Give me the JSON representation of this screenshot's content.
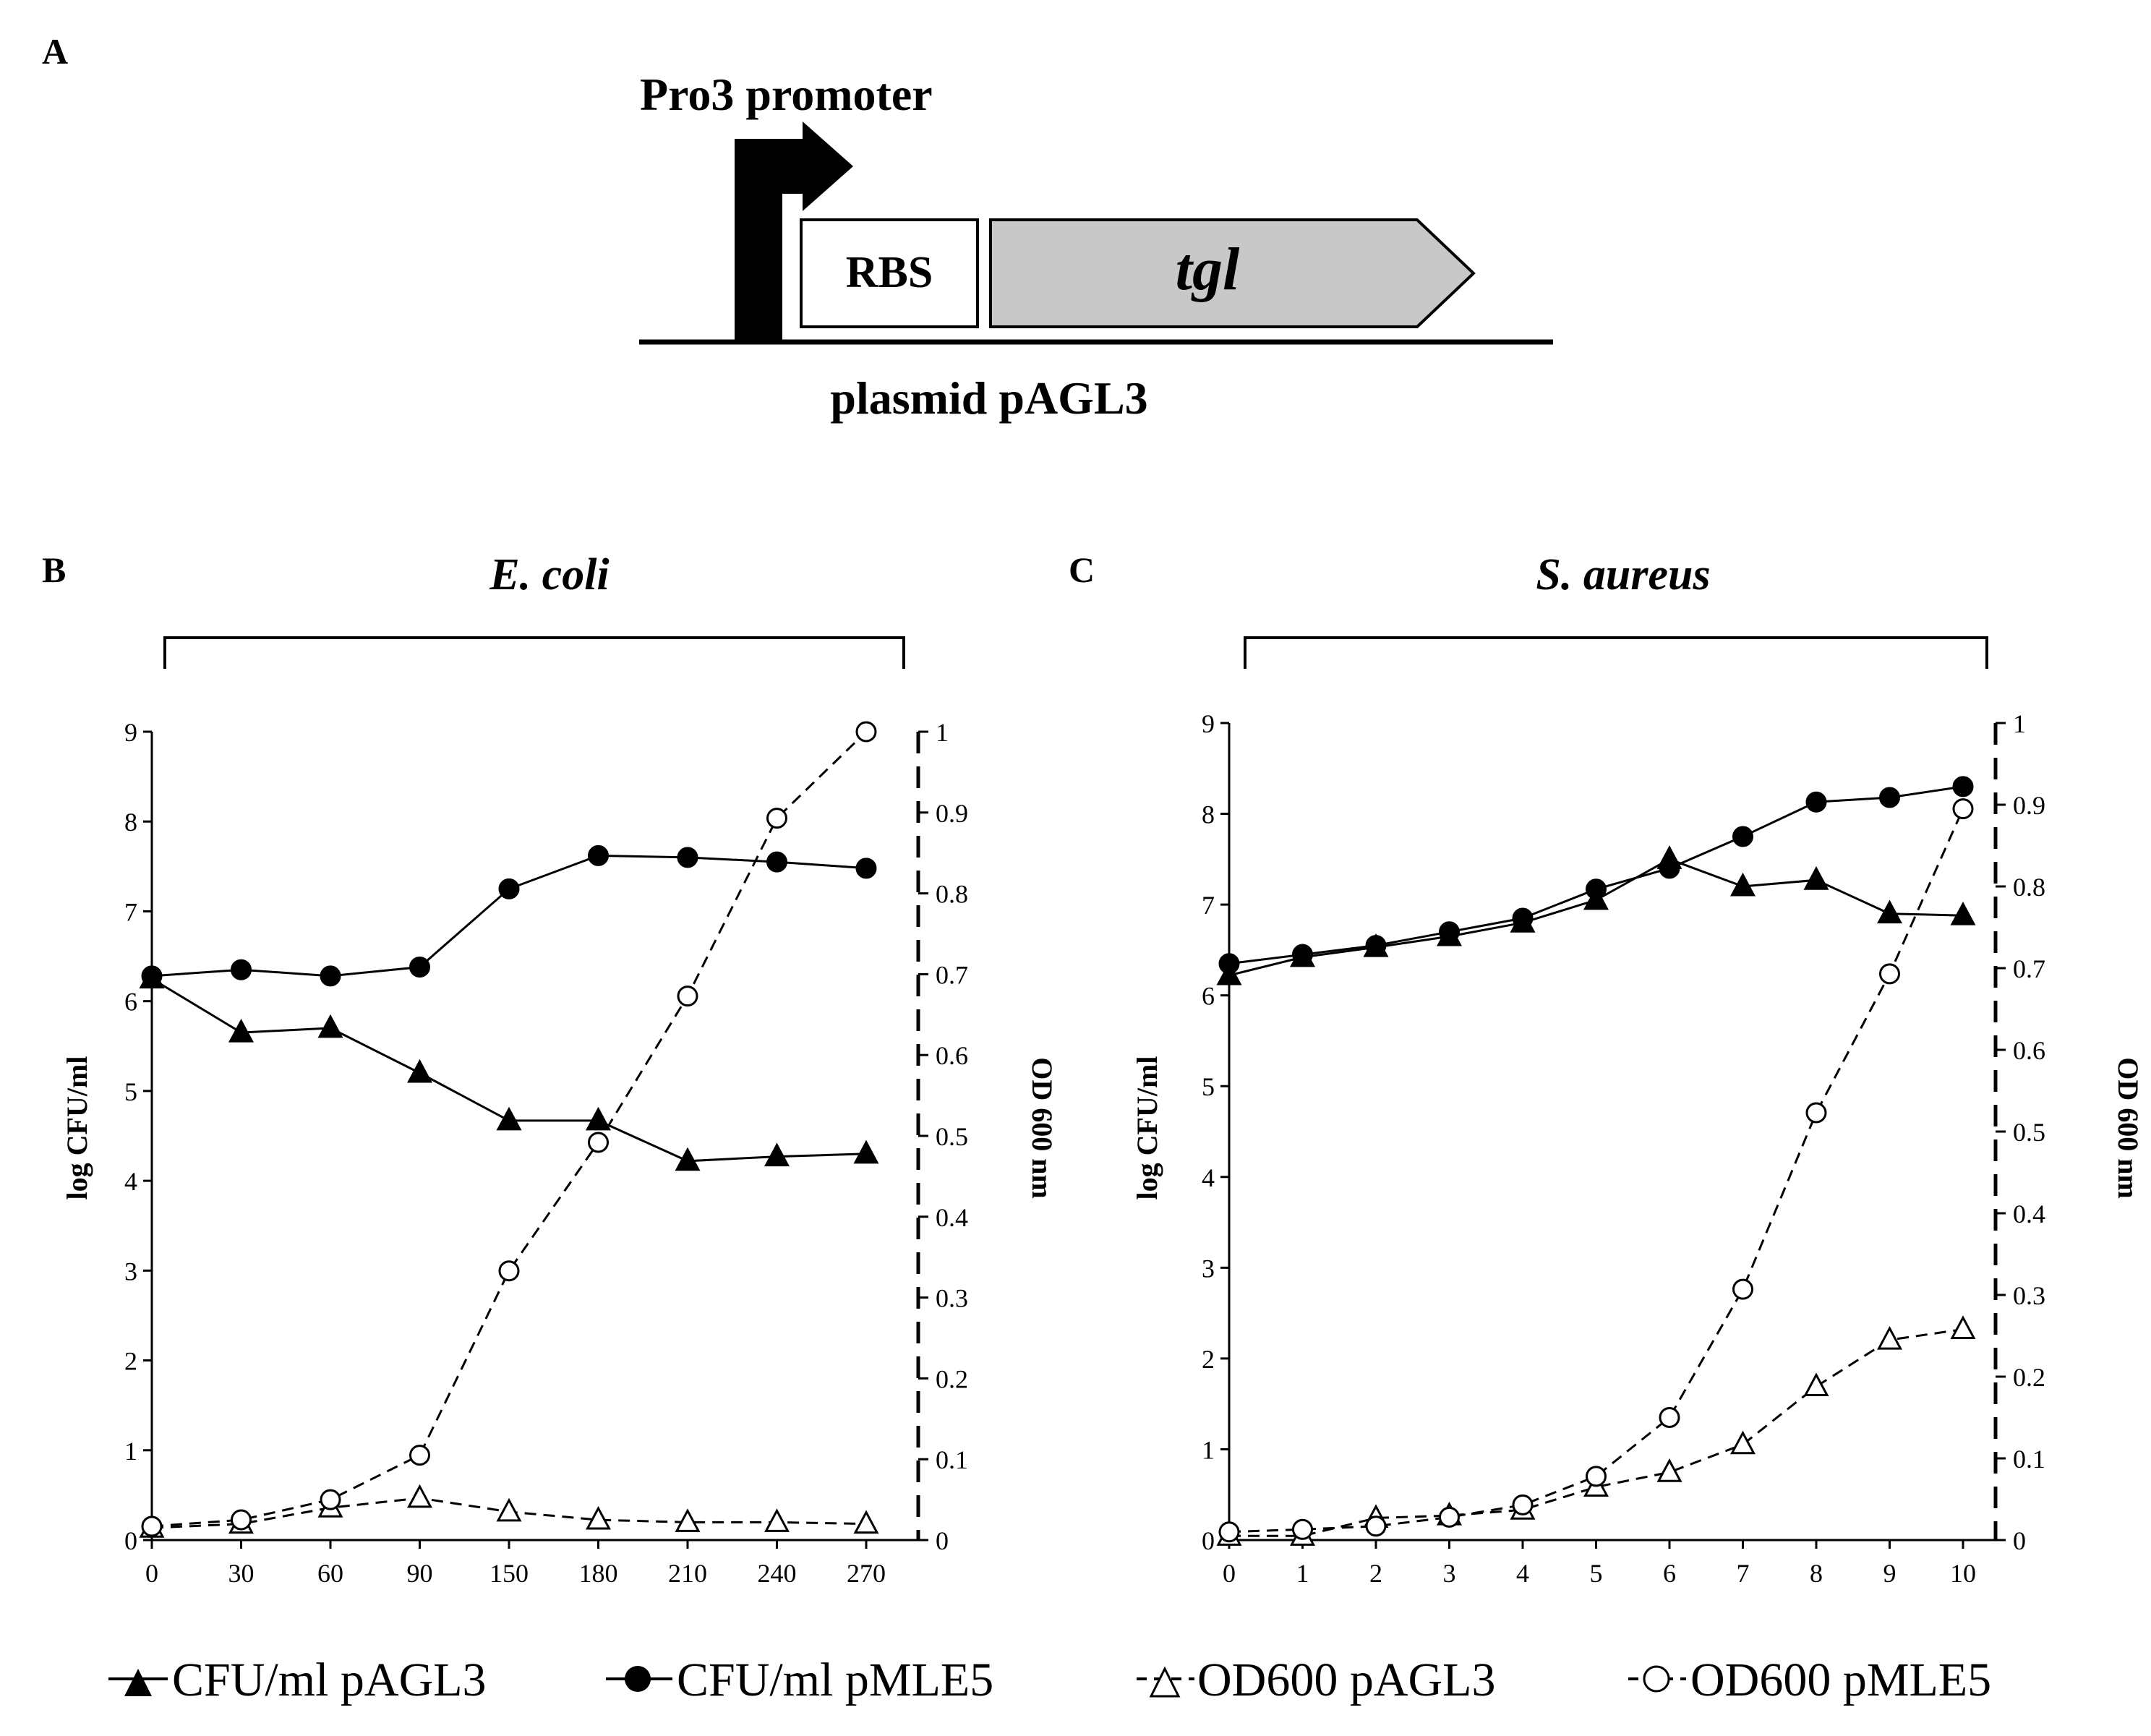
{
  "panel_a": {
    "letter": "A",
    "promoter_label": "Pro3 promoter",
    "rbs_label": "RBS",
    "gene_label": "tgl",
    "plasmid_label": "plasmid pAGL3",
    "colors": {
      "gene_fill": "#c8c8c8",
      "ink": "#000000"
    }
  },
  "legend": [
    {
      "key": "cfu_pagl3",
      "label": "CFU/ml pAGL3",
      "marker": "filled-triangle",
      "line": "solid"
    },
    {
      "key": "cfu_pmle5",
      "label": "CFU/ml pMLE5",
      "marker": "filled-circle",
      "line": "solid"
    },
    {
      "key": "od_pagl3",
      "label": "OD600 pAGL3",
      "marker": "open-triangle",
      "line": "dashed"
    },
    {
      "key": "od_pmle5",
      "label": "OD600 pMLE5",
      "marker": "open-circle",
      "line": "dashed"
    }
  ],
  "chart_data": [
    {
      "panel": "B",
      "organism": "E. coli",
      "type": "line",
      "categories": [
        "0",
        "30",
        "60",
        "90",
        "150",
        "180",
        "210",
        "240",
        "270"
      ],
      "xlabel": "",
      "y_left": {
        "label": "log CFU/ml",
        "lim": [
          0,
          9
        ],
        "ticks": [
          "0",
          "1",
          "2",
          "3",
          "4",
          "5",
          "6",
          "7",
          "8",
          "9"
        ]
      },
      "y_right": {
        "label": "OD 600 nm",
        "lim": [
          0,
          1
        ],
        "ticks": [
          "0",
          "0.1",
          "0.2",
          "0.3",
          "0.4",
          "0.5",
          "0.6",
          "0.7",
          "0.8",
          "0.9",
          "1"
        ]
      },
      "series": [
        {
          "key": "cfu_pagl3",
          "name": "CFU/ml pAGL3",
          "axis": "left",
          "values": [
            6.25,
            5.65,
            5.7,
            5.2,
            4.67,
            4.67,
            4.22,
            4.27,
            4.3
          ]
        },
        {
          "key": "cfu_pmle5",
          "name": "CFU/ml pMLE5",
          "axis": "left",
          "values": [
            6.28,
            6.35,
            6.28,
            6.38,
            7.25,
            7.62,
            7.6,
            7.55,
            7.48
          ]
        },
        {
          "key": "od_pagl3",
          "name": "OD600 pAGL3",
          "axis": "right",
          "values": [
            0.015,
            0.02,
            0.04,
            0.052,
            0.035,
            0.025,
            0.022,
            0.022,
            0.02
          ]
        },
        {
          "key": "od_pmle5",
          "name": "OD600 pMLE5",
          "axis": "right",
          "values": [
            0.017,
            0.025,
            0.05,
            0.105,
            0.333,
            0.492,
            0.673,
            0.893,
            1.0
          ]
        }
      ]
    },
    {
      "panel": "C",
      "organism": "S. aureus",
      "type": "line",
      "categories": [
        "0",
        "1",
        "2",
        "3",
        "4",
        "5",
        "6",
        "7",
        "8",
        "9",
        "10"
      ],
      "xlabel": "",
      "y_left": {
        "label": "log CFU/ml",
        "lim": [
          0,
          9
        ],
        "ticks": [
          "0",
          "1",
          "2",
          "3",
          "4",
          "5",
          "6",
          "7",
          "8",
          "9"
        ]
      },
      "y_right": {
        "label": "OD 600 nm",
        "lim": [
          0,
          1
        ],
        "ticks": [
          "0",
          "0.1",
          "0.2",
          "0.3",
          "0.4",
          "0.5",
          "0.6",
          "0.7",
          "0.8",
          "0.9",
          "1"
        ]
      },
      "series": [
        {
          "key": "cfu_pagl3",
          "name": "CFU/ml pAGL3",
          "axis": "left",
          "values": [
            6.22,
            6.42,
            6.53,
            6.65,
            6.8,
            7.05,
            7.5,
            7.2,
            7.27,
            6.9,
            6.88
          ]
        },
        {
          "key": "cfu_pmle5",
          "name": "CFU/ml pMLE5",
          "axis": "left",
          "values": [
            6.35,
            6.45,
            6.55,
            6.7,
            6.85,
            7.17,
            7.4,
            7.75,
            8.13,
            8.18,
            8.3
          ]
        },
        {
          "key": "od_pagl3",
          "name": "OD600 pAGL3",
          "axis": "right",
          "values": [
            0.005,
            0.005,
            0.027,
            0.03,
            0.037,
            0.065,
            0.083,
            0.117,
            0.188,
            0.245,
            0.258
          ]
        },
        {
          "key": "od_pmle5",
          "name": "OD600 pMLE5",
          "axis": "right",
          "values": [
            0.01,
            0.013,
            0.017,
            0.028,
            0.043,
            0.078,
            0.15,
            0.307,
            0.523,
            0.693,
            0.895
          ]
        }
      ]
    }
  ]
}
